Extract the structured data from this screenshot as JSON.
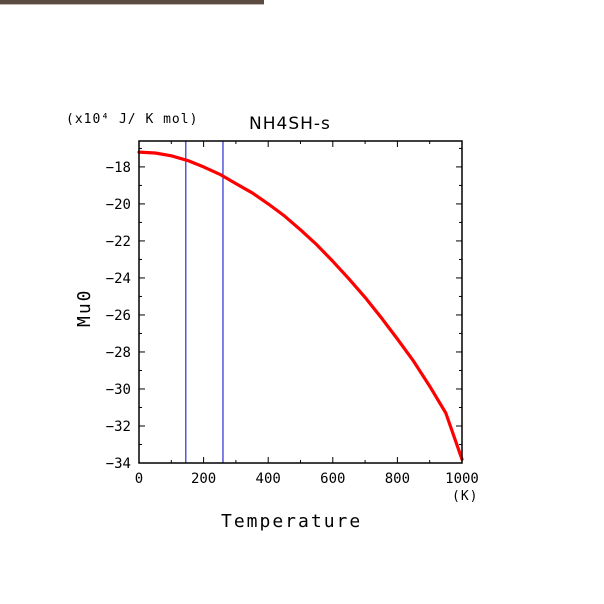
{
  "chart_data": {
    "type": "line",
    "title": "NH4SH-s",
    "xlabel": "Temperature",
    "ylabel": "Mu0",
    "x_unit": "(K)",
    "y_unit": "(x10⁴ J/ K mol)",
    "xlim": [
      0,
      1000
    ],
    "ylim": [
      -34,
      -16.6
    ],
    "x_ticks": [
      0,
      200,
      400,
      600,
      800,
      1000
    ],
    "y_ticks": [
      -18,
      -20,
      -22,
      -24,
      -26,
      -28,
      -30,
      -32,
      -34
    ],
    "vlines": [
      145,
      260
    ],
    "colors": {
      "series": "#ff0000",
      "vlines": "#0000cc"
    },
    "series": [
      {
        "x": [
          0,
          50,
          100,
          150,
          200,
          250,
          300,
          350,
          400,
          450,
          500,
          550,
          600,
          650,
          700,
          750,
          800,
          850,
          900,
          950,
          1000
        ],
        "values": [
          -17.2,
          -17.25,
          -17.4,
          -17.65,
          -18.0,
          -18.4,
          -18.9,
          -19.4,
          -20.0,
          -20.65,
          -21.4,
          -22.2,
          -23.1,
          -24.05,
          -25.05,
          -26.15,
          -27.3,
          -28.5,
          -29.85,
          -31.3,
          -33.8
        ]
      }
    ]
  }
}
